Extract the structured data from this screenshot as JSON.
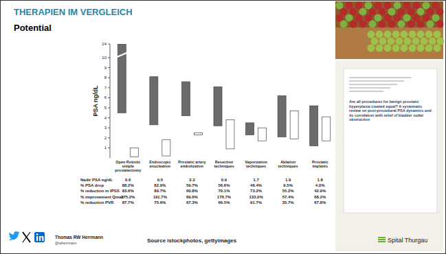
{
  "slide": {
    "title": "THERAPIEN IM VERGLEICH",
    "subtitle": "Potential",
    "author": "Thomas RW Herrmann",
    "handle": "@twherrmann",
    "source": "Source istockphotos, gettyimages",
    "brand": "Spital Thurgau",
    "paper_title": "Are all procedures for benign prostatic hyperplasia created equal? A systematic review on post-procedural PSA dynamics and its correlation with relief of bladder outlet obstruction"
  },
  "chart_data": {
    "type": "range_bar",
    "y_label": "PSA ng/dL",
    "categories": [
      "Open Robotic simple prostatectomy",
      "Endoscopic enucleation",
      "Prostatic artery embolization",
      "Resection techniques",
      "Vaporization techniques",
      "Ablation techniques",
      "Prostatic implants"
    ],
    "ylim": [
      0,
      24
    ],
    "yticks": [
      1,
      2,
      3,
      4,
      5,
      6,
      7,
      8,
      9,
      10,
      24
    ],
    "series": [
      {
        "color": "#6b6b6b",
        "low": [
          4.5,
          3.3,
          4.2,
          3.2,
          2.3,
          2.1,
          1.2
        ],
        "values": [
          24,
          8.1,
          7.6,
          7.1,
          3.5,
          6.2,
          5.2
        ]
      },
      {
        "color": "#ffffff",
        "low": [
          0.1,
          0.2,
          2.3,
          0.9,
          1.7,
          1.9,
          1.7
        ],
        "values": [
          1.0,
          1.8,
          2.5,
          3.8,
          3.0,
          4.7,
          4.1
        ]
      }
    ]
  },
  "table": {
    "rows": [
      {
        "label": "Nadir PSA ng/dL",
        "cells": [
          "0.6",
          "0.5",
          "2.3",
          "0.9",
          "1.7",
          "1.9",
          "1.8"
        ]
      },
      {
        "label": "% PSA drop",
        "cells": [
          "88.2%",
          "82.0%",
          "59.7%",
          "56.6%",
          "46.4%",
          "9.5%",
          "4.0%"
        ]
      },
      {
        "label": "% reduction in IPSS",
        "cells": [
          "83.6%",
          "89.7%",
          "60.8%",
          "70.1%",
          "73.2%",
          "55.2%",
          "42.9%"
        ]
      },
      {
        "label": "% improvement Qmax",
        "cells": [
          "275.2%",
          "191.7%",
          "69.6%",
          "176.7%",
          "133.0%",
          "57.4%",
          "68.2%"
        ]
      },
      {
        "label": "% reduction PVR",
        "cells": [
          "87.7%",
          "75.6%",
          "67.3%",
          "66.5%",
          "91.7%",
          "35.7%",
          "67.8%"
        ]
      }
    ]
  }
}
